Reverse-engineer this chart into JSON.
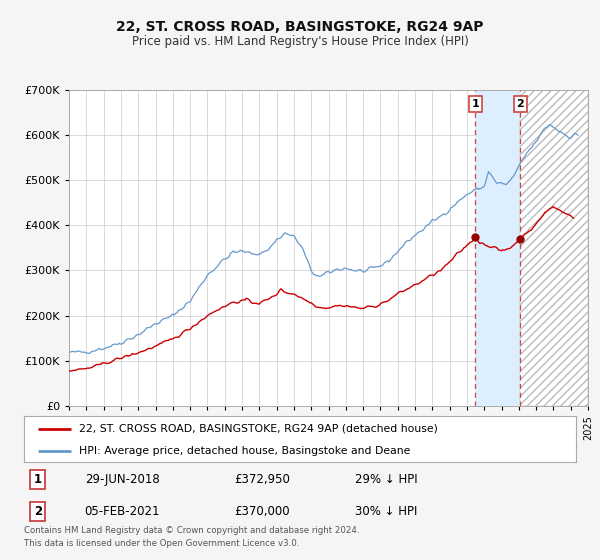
{
  "title": "22, ST. CROSS ROAD, BASINGSTOKE, RG24 9AP",
  "subtitle": "Price paid vs. HM Land Registry's House Price Index (HPI)",
  "red_label": "22, ST. CROSS ROAD, BASINGSTOKE, RG24 9AP (detached house)",
  "blue_label": "HPI: Average price, detached house, Basingstoke and Deane",
  "footer1": "Contains HM Land Registry data © Crown copyright and database right 2024.",
  "footer2": "This data is licensed under the Open Government Licence v3.0.",
  "marker1_date": "29-JUN-2018",
  "marker1_price": 372950,
  "marker1_pct": "29% ↓ HPI",
  "marker2_date": "05-FEB-2021",
  "marker2_price": 370000,
  "marker2_pct": "30% ↓ HPI",
  "marker1_x": 2018.49,
  "marker2_x": 2021.09,
  "xmin": 1995,
  "xmax": 2025,
  "ymin": 0,
  "ymax": 700000,
  "red_color": "#cc0000",
  "blue_color": "#6699cc",
  "marker_color": "#990000",
  "vline_color": "#cc4444",
  "grid_color": "#cccccc",
  "bg_color": "#f5f5f5",
  "plot_bg": "#ffffff",
  "shade_color": "#ddeeff",
  "hatch_color": "#e0e0e0"
}
